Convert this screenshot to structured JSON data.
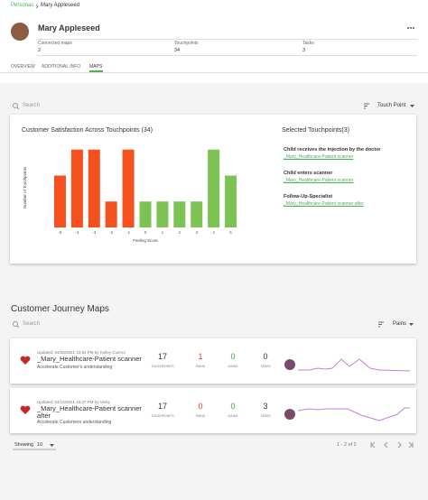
{
  "breadcrumb": {
    "parent": "Personas",
    "current": "Mary Appleseed"
  },
  "persona": {
    "name": "Mary Appleseed",
    "stats": [
      {
        "label": "Connected maps",
        "value": 2
      },
      {
        "label": "Touchpoints",
        "value": 34
      },
      {
        "label": "Tasks",
        "value": 3
      }
    ]
  },
  "tabs": [
    "OVERVIEW",
    "ADDITIONAL INFO",
    "MAPS"
  ],
  "toolbar": {
    "search_placeholder": "Search",
    "sort": "Touch Point"
  },
  "chart_data": {
    "type": "bar",
    "title": "Customer Satisfaction Across Touchpoints (34)",
    "x_label": "Feeling Score",
    "y_label": "Number of Touchpoints",
    "categories": [
      "-5",
      "-4",
      "-3",
      "-2",
      "-1",
      "0",
      "1",
      "2",
      "3",
      "4",
      "5"
    ],
    "values": [
      2,
      3,
      3,
      1,
      3,
      1,
      1,
      1,
      1,
      3,
      2
    ],
    "colors": [
      "#f4511e",
      "#f4511e",
      "#f4511e",
      "#f4511e",
      "#f4511e",
      "#7cc353",
      "#7cc353",
      "#7cc353",
      "#7cc353",
      "#7cc353",
      "#7cc353"
    ],
    "ylim": [
      0,
      3.2
    ]
  },
  "selected_touchpoints": {
    "title": "Selected Touchpoints(3)",
    "items": [
      {
        "name": "Child receives the injection by the doctor",
        "map": "_Mary_Healthcare-Patient scanner"
      },
      {
        "name": "Child enters scanner",
        "map": "_Mary_Healthcare-Patient scanner"
      },
      {
        "name": "Follow-Up-Specialist",
        "map": "_Mary_Healthcare-Patient scanner after"
      }
    ]
  },
  "journey_maps": {
    "title": "Customer Journey Maps",
    "search_placeholder": "Search",
    "sort": "Pains",
    "maps": [
      {
        "updated": "Updated: 04/26/2021 10:54 PM by Kelley Cuervo",
        "name": "_Mary_Healthcare-Patient scanner",
        "description": "Accelerate Customer's understanding",
        "stats": [
          {
            "value": 17,
            "label": "TOUCHPOINTS"
          },
          {
            "value": 1,
            "label": "PAINS"
          },
          {
            "value": 0,
            "label": "GAINS"
          },
          {
            "value": 0,
            "label": "TASKS"
          }
        ]
      },
      {
        "updated": "Updated: 04/12/2021 10:47 PM by Verky",
        "name": "_Mary_Healthcare-Patient scanner after",
        "description": "Accelerate Customers understanding",
        "stats": [
          {
            "value": 17,
            "label": "TOUCHPOINTS"
          },
          {
            "value": 0,
            "label": "PAINS"
          },
          {
            "value": 0,
            "label": "GAINS"
          },
          {
            "value": 3,
            "label": "TASKS"
          }
        ]
      }
    ]
  },
  "footer": {
    "showing_label": "Showing",
    "page_size": 10,
    "range": "1 - 2 of 2"
  }
}
